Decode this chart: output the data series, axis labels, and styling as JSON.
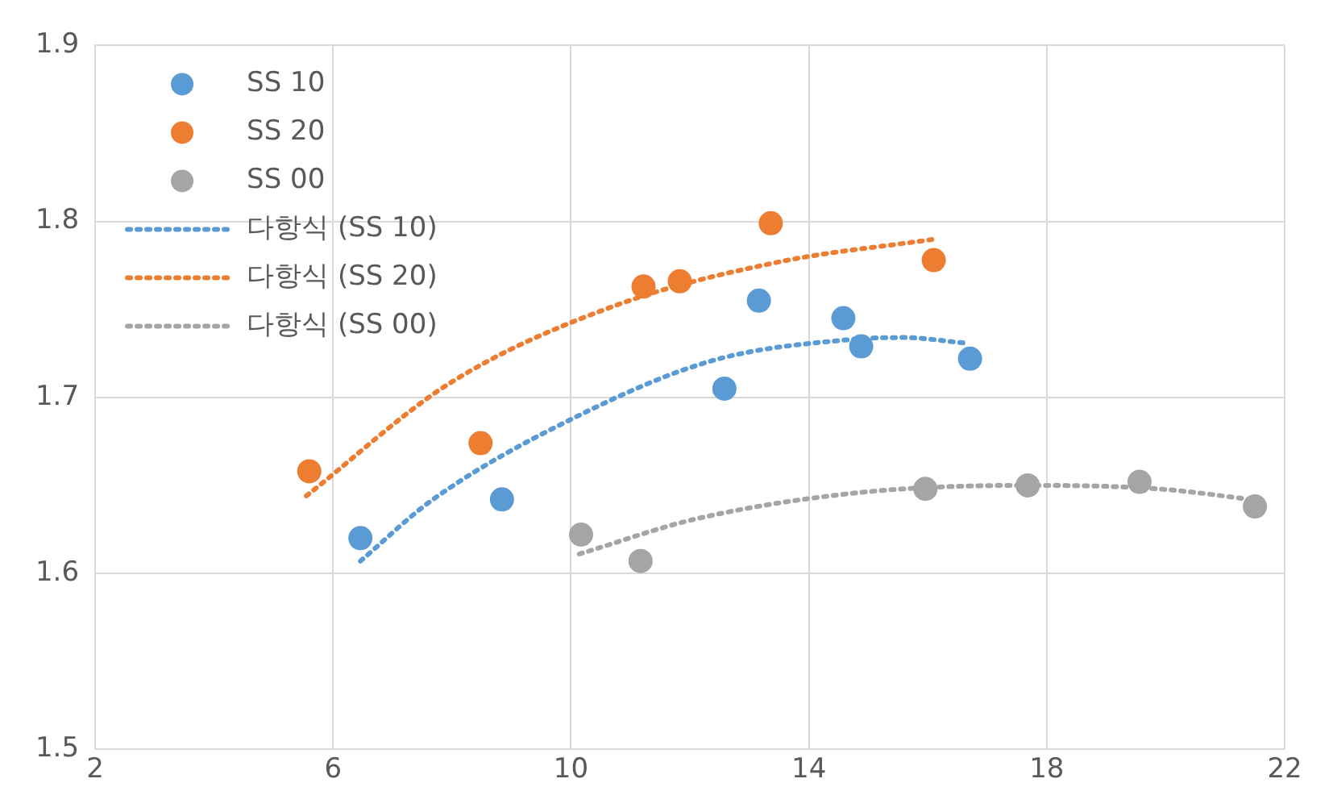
{
  "chart_data": {
    "type": "scatter",
    "xlim": [
      2,
      22
    ],
    "xticks": [
      2,
      6,
      10,
      14,
      18,
      22
    ],
    "ylim": [
      1.5,
      1.9
    ],
    "yticks": [
      1.5,
      1.6,
      1.7,
      1.8,
      1.9
    ],
    "grid": true,
    "legend": "top left",
    "series": [
      {
        "name": "SS 10",
        "type": "scatter",
        "marker": "circle",
        "color": "#5b9bd5",
        "x": [
          6.46,
          8.84,
          12.58,
          13.16,
          14.58,
          14.88,
          16.71
        ],
        "values": [
          1.62,
          1.642,
          1.705,
          1.755,
          1.745,
          1.729,
          1.722
        ]
      },
      {
        "name": "SS 20",
        "type": "scatter",
        "marker": "circle",
        "color": "#ed7d31",
        "x": [
          5.6,
          8.48,
          11.22,
          11.83,
          13.36,
          16.1
        ],
        "values": [
          1.658,
          1.674,
          1.763,
          1.766,
          1.799,
          1.778
        ]
      },
      {
        "name": "SS 00",
        "type": "scatter",
        "marker": "circle",
        "color": "#a5a5a5",
        "x": [
          10.17,
          11.17,
          15.96,
          17.68,
          19.56,
          21.5
        ],
        "values": [
          1.622,
          1.607,
          1.648,
          1.65,
          1.652,
          1.638
        ]
      },
      {
        "name": "다항식 (SS 10)",
        "type": "line",
        "line_style": "dotted",
        "color": "#5b9bd5",
        "x": [
          6.46,
          7.68,
          10.03,
          12.39,
          14.74,
          15.6,
          16.6
        ],
        "values": [
          1.607,
          1.642,
          1.688,
          1.721,
          1.733,
          1.734,
          1.731
        ]
      },
      {
        "name": "다항식 (SS 20)",
        "type": "line",
        "line_style": "dotted",
        "color": "#ed7d31",
        "x": [
          5.55,
          7.96,
          10.73,
          13.5,
          16.13
        ],
        "values": [
          1.644,
          1.708,
          1.752,
          1.777,
          1.79
        ]
      },
      {
        "name": "다항식 (SS 00)",
        "type": "line",
        "line_style": "dotted",
        "color": "#a5a5a5",
        "x": [
          10.14,
          12.11,
          14.88,
          17.65,
          19.87,
          21.67
        ],
        "values": [
          1.611,
          1.631,
          1.646,
          1.65,
          1.648,
          1.641
        ]
      }
    ]
  }
}
